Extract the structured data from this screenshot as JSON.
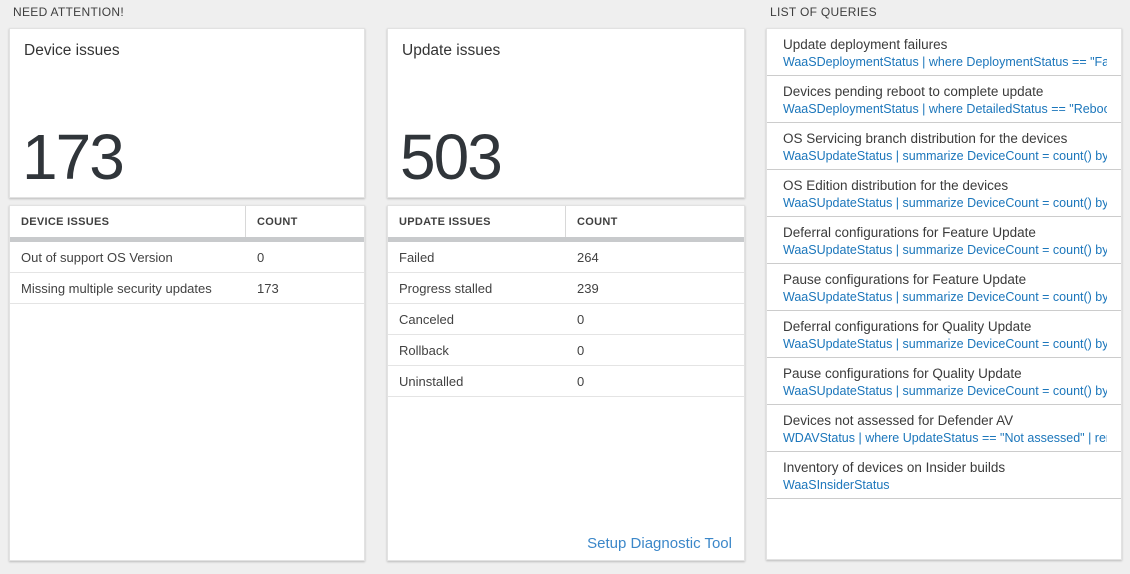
{
  "need_attention": {
    "label": "NEED ATTENTION!"
  },
  "queries_section": {
    "label": "LIST OF QUERIES"
  },
  "device_card": {
    "title": "Device issues",
    "count": "173"
  },
  "device_table": {
    "header": {
      "issues": "DEVICE ISSUES",
      "count": "COUNT"
    },
    "rows": [
      {
        "label": "Out of support OS Version",
        "count": "0"
      },
      {
        "label": "Missing multiple security updates",
        "count": "173"
      }
    ]
  },
  "update_card": {
    "title": "Update issues",
    "count": "503"
  },
  "update_table": {
    "header": {
      "issues": "UPDATE ISSUES",
      "count": "COUNT"
    },
    "rows": [
      {
        "label": "Failed",
        "count": "264"
      },
      {
        "label": "Progress stalled",
        "count": "239"
      },
      {
        "label": "Canceled",
        "count": "0"
      },
      {
        "label": "Rollback",
        "count": "0"
      },
      {
        "label": "Uninstalled",
        "count": "0"
      }
    ],
    "link_label": "Setup Diagnostic Tool"
  },
  "queries": {
    "items": [
      {
        "title": "Update deployment failures",
        "query": "WaaSDeploymentStatus | where DeploymentStatus == \"Failed\" |..."
      },
      {
        "title": "Devices pending reboot to complete update",
        "query": "WaaSDeploymentStatus | where DetailedStatus == \"Reboot pend..."
      },
      {
        "title": "OS Servicing branch distribution for the devices",
        "query": "WaaSUpdateStatus | summarize DeviceCount = count() by OSSer..."
      },
      {
        "title": "OS Edition distribution for the devices",
        "query": "WaaSUpdateStatus | summarize DeviceCount = count() by OSEdit..."
      },
      {
        "title": "Deferral configurations for Feature Update",
        "query": "WaaSUpdateStatus | summarize DeviceCount = count() by Featur..."
      },
      {
        "title": "Pause configurations for Feature Update",
        "query": "WaaSUpdateStatus | summarize DeviceCount = count() by Featur..."
      },
      {
        "title": "Deferral configurations for Quality Update",
        "query": "WaaSUpdateStatus | summarize DeviceCount = count() by Qualit..."
      },
      {
        "title": "Pause configurations for Quality Update",
        "query": "WaaSUpdateStatus | summarize DeviceCount = count() by Qualit..."
      },
      {
        "title": "Devices not assessed for Defender AV",
        "query": "WDAVStatus | where UpdateStatus == \"Not assessed\" | render ta..."
      },
      {
        "title": "Inventory of devices on Insider builds",
        "query": "WaaSInsiderStatus"
      }
    ]
  },
  "colors": {
    "query_blue": "#1b76bb",
    "link_blue": "#3b87c9",
    "number_dark": "#30353a",
    "panel_bg": "#ffffff",
    "page_bg": "#efefef"
  }
}
